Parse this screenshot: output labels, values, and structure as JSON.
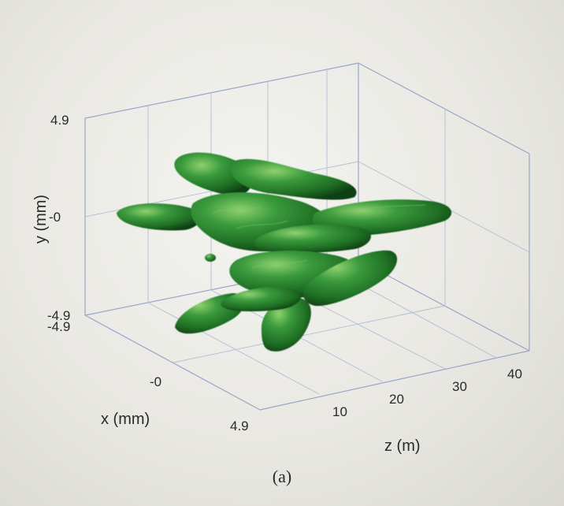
{
  "caption": "(a)",
  "chart_data": {
    "type": "isosurface3d",
    "xlabel": "x (mm)",
    "ylabel": "y (mm)",
    "zlabel": "z (m)",
    "xlim": [
      -4.9,
      4.9
    ],
    "ylim": [
      -4.9,
      4.9
    ],
    "zlim": [
      0,
      40
    ],
    "x_ticks": [
      "-0",
      "4.9"
    ],
    "y_ticks": [
      "4.9",
      "-0",
      "-4.9",
      "-4.9"
    ],
    "z_ticks": [
      "10",
      "20",
      "30",
      "40"
    ],
    "surface_color": "#2e8b33",
    "box_color": "#9aa6c8",
    "grid": true
  }
}
